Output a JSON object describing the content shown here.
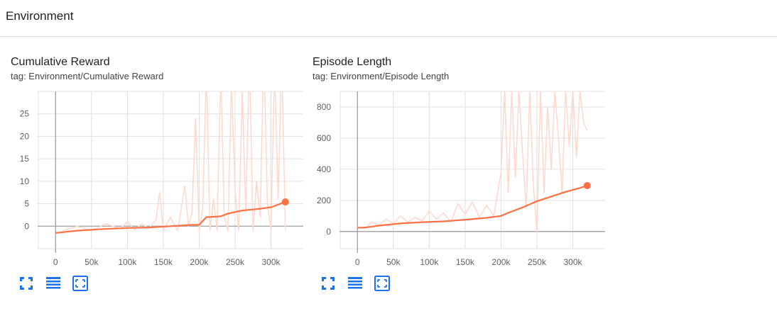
{
  "section": {
    "title": "Environment"
  },
  "colors": {
    "line": "#ff7043",
    "raw": "#ffd8cc",
    "grid": "#e0e0e0",
    "axis": "#9e9e9e",
    "accent": "#1a73e8"
  },
  "toolbar_icons": [
    "fullscreen-icon",
    "data-table-icon",
    "fit-domain-icon"
  ],
  "chart_data": [
    {
      "type": "line",
      "title": "Cumulative Reward",
      "subtitle": "tag: Environment/Cumulative Reward",
      "xlabel": "",
      "ylabel": "",
      "xlim": [
        -25000,
        345000
      ],
      "ylim": [
        -5,
        30
      ],
      "x_ticks": [
        0,
        50000,
        100000,
        150000,
        200000,
        250000,
        300000
      ],
      "x_tick_labels": [
        "0",
        "50k",
        "100k",
        "150k",
        "200k",
        "250k",
        "300k"
      ],
      "y_ticks": [
        0,
        5,
        10,
        15,
        20,
        25
      ],
      "y_tick_labels": [
        "0",
        "5",
        "10",
        "15",
        "20",
        "25"
      ],
      "grid": true,
      "series": [
        {
          "role": "smoothed",
          "x": [
            0,
            30000,
            60000,
            100000,
            130000,
            160000,
            190000,
            200000,
            210000,
            230000,
            240000,
            260000,
            280000,
            300000,
            320000
          ],
          "y": [
            -1.5,
            -1.0,
            -0.7,
            -0.4,
            -0.3,
            0.0,
            0.3,
            0.3,
            2.0,
            2.2,
            2.8,
            3.5,
            3.8,
            4.2,
            5.4
          ]
        },
        {
          "role": "raw",
          "x": [
            10000,
            30000,
            50000,
            70000,
            90000,
            100000,
            110000,
            120000,
            130000,
            140000,
            145000,
            150000,
            160000,
            170000,
            180000,
            185000,
            190000,
            195000,
            200000,
            205000,
            210000,
            215000,
            220000,
            225000,
            230000,
            235000,
            240000,
            245000,
            250000,
            255000,
            260000,
            265000,
            270000,
            275000,
            280000,
            285000,
            290000,
            295000,
            300000,
            305000,
            310000,
            315000,
            320000
          ],
          "y": [
            -1,
            0,
            -1,
            0.5,
            -0.5,
            1,
            -0.8,
            0.5,
            -0.5,
            1.5,
            7.5,
            -1,
            2,
            -1,
            9,
            0,
            3,
            24,
            -1,
            4,
            35,
            -1,
            6,
            -1,
            35,
            2,
            -1,
            32,
            8,
            -1,
            30,
            3,
            38,
            -1,
            10,
            2,
            40,
            5,
            -1,
            36,
            6,
            38,
            -1
          ]
        }
      ]
    },
    {
      "type": "line",
      "title": "Episode Length",
      "subtitle": "tag: Environment/Episode Length",
      "xlabel": "",
      "ylabel": "",
      "xlim": [
        -25000,
        345000
      ],
      "ylim": [
        -110,
        900
      ],
      "x_ticks": [
        0,
        50000,
        100000,
        150000,
        200000,
        250000,
        300000
      ],
      "x_tick_labels": [
        "0",
        "50k",
        "100k",
        "150k",
        "200k",
        "250k",
        "300k"
      ],
      "y_ticks": [
        0,
        200,
        400,
        600,
        800
      ],
      "y_tick_labels": [
        "0",
        "200",
        "400",
        "600",
        "800"
      ],
      "grid": true,
      "series": [
        {
          "role": "smoothed",
          "x": [
            0,
            10000,
            30000,
            60000,
            90000,
            120000,
            150000,
            180000,
            200000,
            210000,
            230000,
            250000,
            270000,
            290000,
            310000,
            320000
          ],
          "y": [
            25,
            25,
            38,
            52,
            60,
            65,
            76,
            88,
            100,
            120,
            155,
            195,
            225,
            255,
            280,
            295
          ]
        },
        {
          "role": "raw",
          "x": [
            0,
            10000,
            20000,
            30000,
            40000,
            50000,
            60000,
            70000,
            80000,
            90000,
            100000,
            110000,
            120000,
            130000,
            140000,
            150000,
            160000,
            170000,
            180000,
            190000,
            200000,
            205000,
            210000,
            215000,
            220000,
            225000,
            230000,
            235000,
            240000,
            245000,
            250000,
            255000,
            260000,
            265000,
            270000,
            275000,
            280000,
            285000,
            290000,
            295000,
            300000,
            305000,
            310000,
            315000,
            320000
          ],
          "y": [
            30,
            20,
            60,
            40,
            80,
            50,
            100,
            60,
            90,
            70,
            130,
            80,
            120,
            60,
            180,
            110,
            190,
            90,
            170,
            100,
            380,
            900,
            250,
            900,
            350,
            900,
            500,
            150,
            900,
            300,
            0,
            900,
            250,
            800,
            400,
            900,
            600,
            250,
            900,
            550,
            900,
            480,
            900,
            700,
            650
          ]
        }
      ]
    }
  ]
}
